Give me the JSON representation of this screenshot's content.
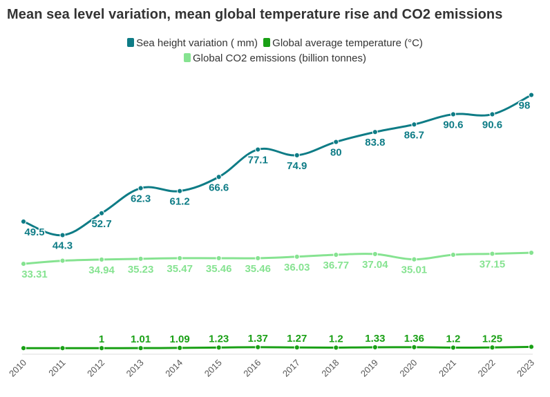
{
  "chart_data": {
    "type": "line",
    "title": "Mean sea level variation, mean global temperature rise and CO2 emissions",
    "xlabel": "",
    "ylabel": "",
    "x": [
      "2010",
      "2011",
      "2012",
      "2013",
      "2014",
      "2015",
      "2016",
      "2017",
      "2018",
      "2019",
      "2020",
      "2021",
      "2022",
      "2023"
    ],
    "ylim": [
      0,
      100
    ],
    "grid": false,
    "legend_position": "top-center",
    "series": [
      {
        "name": "Sea height variation ( mm)",
        "color": "#0e7c86",
        "values": [
          49.5,
          44.3,
          52.7,
          62.3,
          61.2,
          66.6,
          77.1,
          74.9,
          80,
          83.8,
          86.7,
          90.6,
          90.6,
          98
        ],
        "labels": [
          "49.5",
          "44.3",
          "52.7",
          "62.3",
          "61.2",
          "66.6",
          "77.1",
          "74.9",
          "80",
          "83.8",
          "86.7",
          "90.6",
          "90.6",
          "98"
        ]
      },
      {
        "name": "Global average temperature (°C)",
        "color": "#19a015",
        "values": [
          1.0,
          1.0,
          1,
          1.01,
          1.09,
          1.23,
          1.37,
          1.27,
          1.2,
          1.33,
          1.36,
          1.2,
          1.25,
          1.5
        ],
        "labels": [
          "",
          "",
          "1",
          "1.01",
          "1.09",
          "1.23",
          "1.37",
          "1.27",
          "1.2",
          "1.33",
          "1.36",
          "1.2",
          "1.25",
          ""
        ]
      },
      {
        "name": "Global CO2 emissions (billion tonnes)",
        "color": "#86e391",
        "values": [
          33.31,
          34.5,
          34.94,
          35.23,
          35.47,
          35.46,
          35.46,
          36.03,
          36.77,
          37.04,
          35.01,
          36.77,
          37.15,
          37.55
        ],
        "labels": [
          "33.31",
          "",
          "34.94",
          "35.23",
          "35.47",
          "35.46",
          "35.46",
          "36.03",
          "36.77",
          "37.04",
          "35.01",
          "",
          "37.15",
          ""
        ]
      }
    ]
  }
}
